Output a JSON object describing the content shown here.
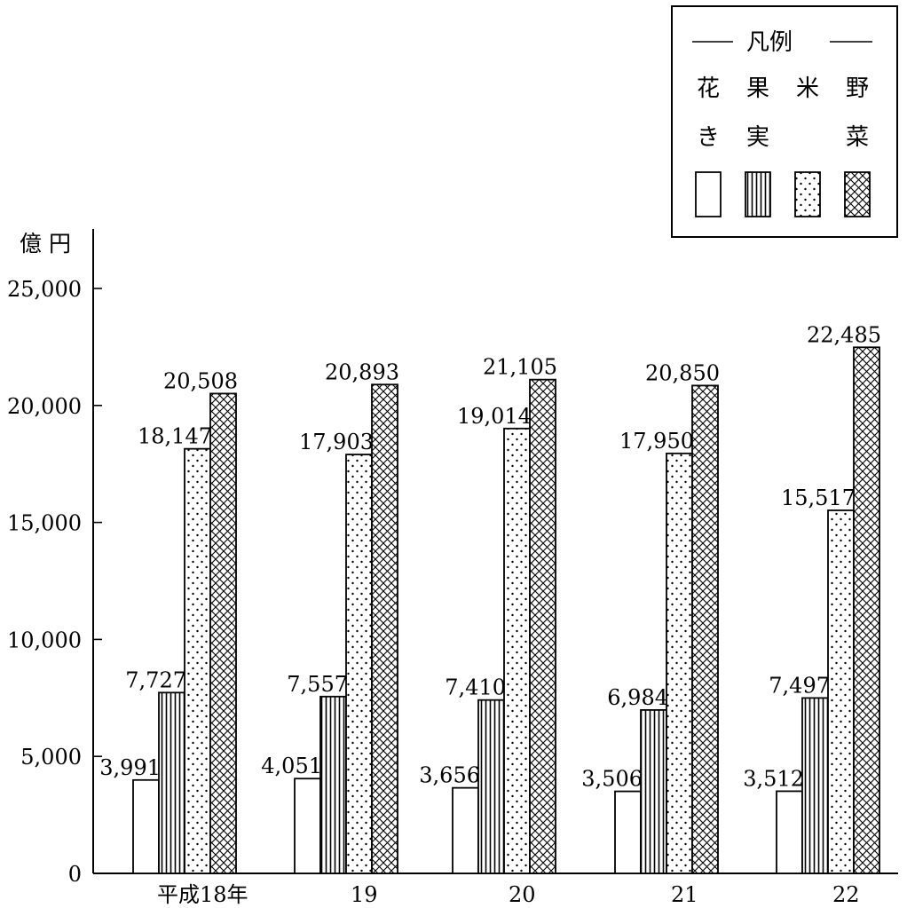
{
  "chart_data": {
    "type": "bar",
    "unit_label": "億 円",
    "categories": [
      "平成18年",
      "19",
      "20",
      "21",
      "22"
    ],
    "series": [
      {
        "name": "花き",
        "name_lines": [
          "花",
          "き"
        ],
        "pattern": "plain",
        "values": [
          3991,
          4051,
          3656,
          3506,
          3512
        ]
      },
      {
        "name": "果実",
        "name_lines": [
          "果",
          "実"
        ],
        "pattern": "vertical-lines",
        "values": [
          7727,
          7557,
          7410,
          6984,
          7497
        ]
      },
      {
        "name": "米",
        "name_lines": [
          "米",
          ""
        ],
        "pattern": "dots",
        "values": [
          18147,
          17903,
          19014,
          17950,
          15517
        ]
      },
      {
        "name": "野菜",
        "name_lines": [
          "野",
          "菜"
        ],
        "pattern": "crosshatch",
        "values": [
          20508,
          20893,
          21105,
          20850,
          22485
        ]
      }
    ],
    "value_labels": [
      [
        "3,991",
        "7,727",
        "18,147",
        "20,508"
      ],
      [
        "4,051",
        "7,557",
        "17,903",
        "20,893"
      ],
      [
        "3,656",
        "7,410",
        "19,014",
        "21,105"
      ],
      [
        "3,506",
        "6,984",
        "17,950",
        "20,850"
      ],
      [
        "3,512",
        "7,497",
        "15,517",
        "22,485"
      ]
    ],
    "yticks": [
      0,
      5000,
      10000,
      15000,
      20000,
      25000
    ],
    "ytick_labels": [
      "0",
      "5,000",
      "10,000",
      "15,000",
      "20,000",
      "25,000"
    ],
    "ylim": [
      0,
      25000
    ],
    "legend": {
      "title": "凡例",
      "position": "top-right"
    },
    "grid": false
  }
}
